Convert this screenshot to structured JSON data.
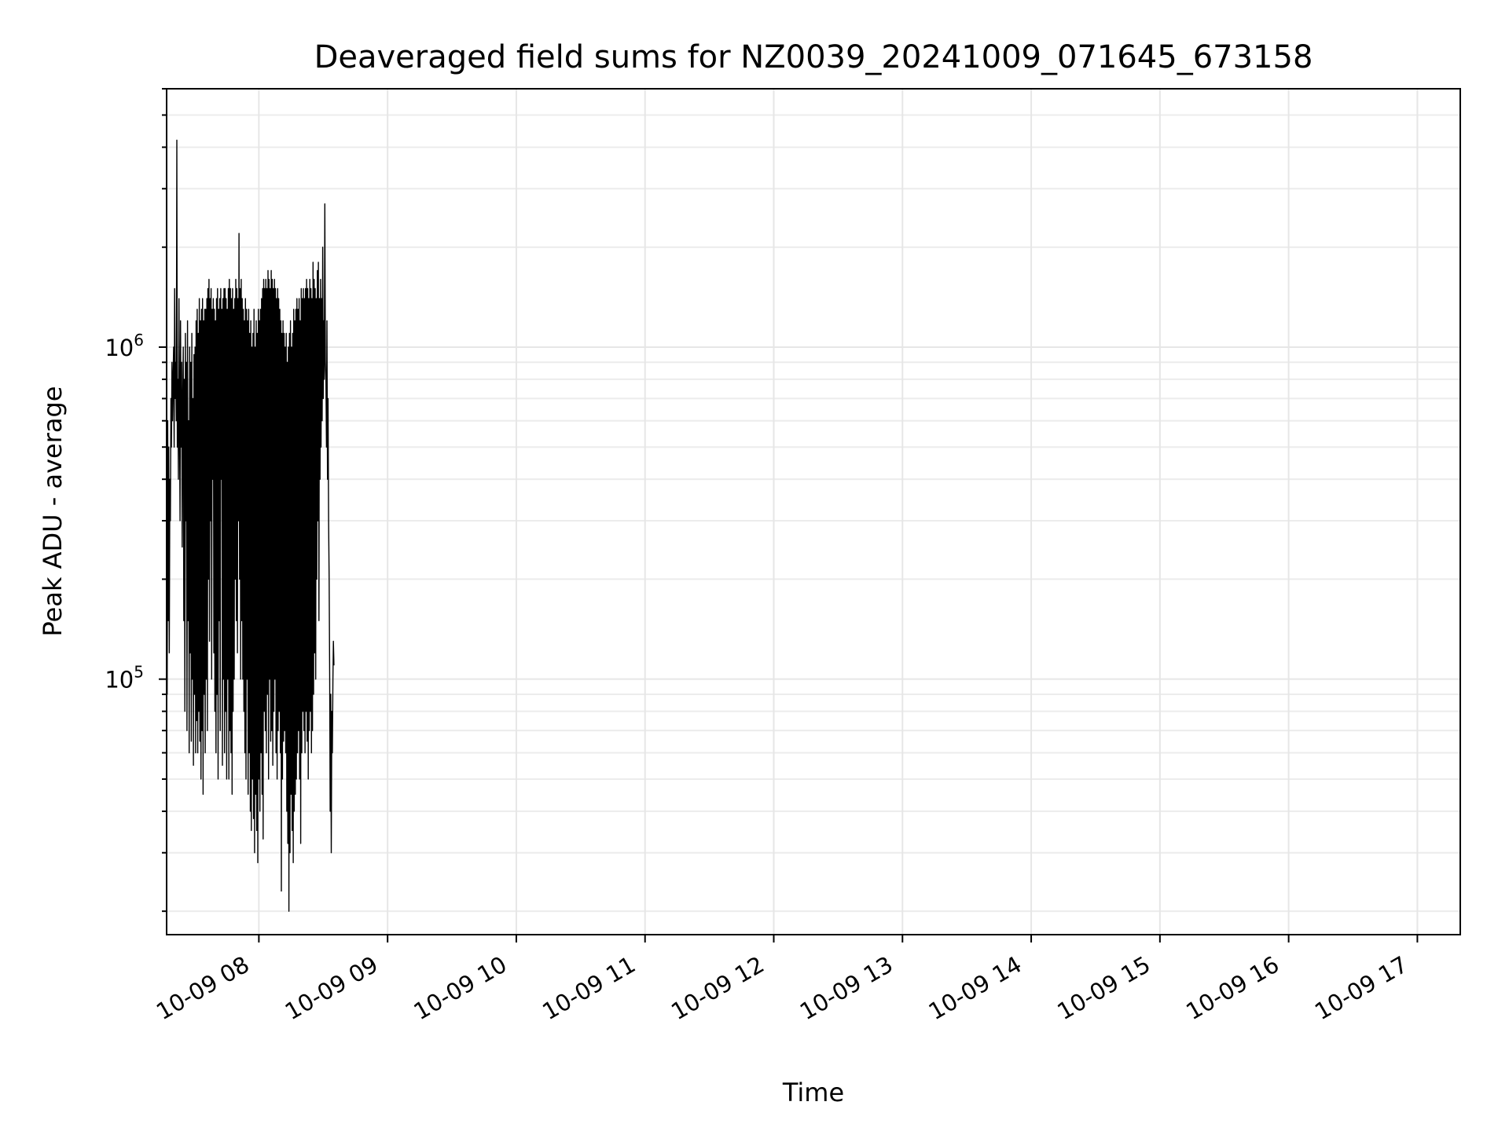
{
  "chart_data": {
    "type": "line",
    "title": "Deaveraged field sums for NZ0039_20241009_071645_673158",
    "xlabel": "Time",
    "ylabel": "Peak ADU - average",
    "x_ticks": [
      "10-09 08",
      "10-09 09",
      "10-09 10",
      "10-09 11",
      "10-09 12",
      "10-09 13",
      "10-09 14",
      "10-09 15",
      "10-09 16",
      "10-09 17"
    ],
    "xlim": [
      "2024-10-09 07:17",
      "2024-10-09 17:20"
    ],
    "y_scale": "log",
    "ylim": [
      17000,
      6000000
    ],
    "y_ticks": [
      {
        "value": 100000,
        "base": "10",
        "exp": "5"
      },
      {
        "value": 1000000,
        "base": "10",
        "exp": "6"
      }
    ],
    "grid": true,
    "line_color": "#000000",
    "series": [
      {
        "sampling": "one reading every 15 seconds starting 2024-10-09 07:17:00; each value is one reading, read off the plotted envelope",
        "values": [
          700000,
          90000,
          600000,
          150000,
          500000,
          120000,
          400000,
          300000,
          700000,
          500000,
          900000,
          600000,
          800000,
          1000000,
          500000,
          1500000,
          700000,
          900000,
          600000,
          4200000,
          500000,
          800000,
          400000,
          1400000,
          600000,
          300000,
          1200000,
          500000,
          900000,
          250000,
          700000,
          1000000,
          150000,
          800000,
          80000,
          1100000,
          300000,
          900000,
          70000,
          1200000,
          150000,
          600000,
          60000,
          1000000,
          120000,
          900000,
          65000,
          1100000,
          100000,
          700000,
          55000,
          950000,
          90000,
          1000000,
          60000,
          1200000,
          75000,
          1300000,
          60000,
          1100000,
          80000,
          1400000,
          65000,
          1200000,
          50000,
          1300000,
          70000,
          1400000,
          45000,
          1200000,
          90000,
          1300000,
          60000,
          1300000,
          100000,
          1400000,
          70000,
          1500000,
          200000,
          1600000,
          130000,
          1400000,
          300000,
          1500000,
          100000,
          1300000,
          400000,
          1400000,
          120000,
          1300000,
          80000,
          1200000,
          60000,
          1400000,
          90000,
          1500000,
          50000,
          1300000,
          150000,
          1400000,
          70000,
          1500000,
          400000,
          1300000,
          55000,
          1400000,
          100000,
          1500000,
          60000,
          1500000,
          80000,
          1400000,
          50000,
          1300000,
          100000,
          1500000,
          50000,
          1600000,
          70000,
          1500000,
          60000,
          1400000,
          45000,
          1500000,
          80000,
          1300000,
          100000,
          1400000,
          200000,
          1600000,
          150000,
          1500000,
          120000,
          1400000,
          300000,
          2200000,
          200000,
          1500000,
          100000,
          1600000,
          150000,
          1400000,
          100000,
          1300000,
          80000,
          1200000,
          60000,
          1400000,
          50000,
          1300000,
          100000,
          1200000,
          45000,
          1300000,
          60000,
          1100000,
          40000,
          1200000,
          35000,
          1000000,
          50000,
          1100000,
          38000,
          1300000,
          30000,
          1000000,
          45000,
          1200000,
          35000,
          1100000,
          28000,
          1300000,
          50000,
          1200000,
          40000,
          1300000,
          60000,
          1400000,
          45000,
          1500000,
          33000,
          1600000,
          80000,
          1500000,
          70000,
          1600000,
          60000,
          1500000,
          90000,
          1700000,
          50000,
          1600000,
          100000,
          1500000,
          65000,
          1700000,
          70000,
          1600000,
          55000,
          1500000,
          80000,
          1600000,
          100000,
          1500000,
          60000,
          1400000,
          50000,
          1500000,
          70000,
          1400000,
          80000,
          1300000,
          60000,
          1200000,
          23000,
          1100000,
          50000,
          1200000,
          65000,
          1100000,
          70000,
          1000000,
          60000,
          1100000,
          40000,
          900000,
          32000,
          1000000,
          20000,
          1100000,
          30000,
          1200000,
          45000,
          1000000,
          35000,
          1100000,
          28000,
          1300000,
          40000,
          1200000,
          45000,
          1300000,
          50000,
          1400000,
          60000,
          1300000,
          70000,
          1400000,
          50000,
          1200000,
          32000,
          1500000,
          60000,
          1400000,
          80000,
          1500000,
          70000,
          1400000,
          60000,
          1500000,
          80000,
          1600000,
          65000,
          1500000,
          50000,
          1400000,
          70000,
          1600000,
          80000,
          1500000,
          60000,
          1400000,
          70000,
          1800000,
          90000,
          1600000,
          120000,
          1500000,
          100000,
          1400000,
          200000,
          1700000,
          300000,
          1800000,
          150000,
          1400000,
          400000,
          1600000,
          500000,
          1400000,
          600000,
          2000000,
          700000,
          1200000,
          800000,
          2700000,
          900000,
          800000,
          500000,
          1200000,
          400000,
          700000,
          300000,
          200000,
          100000,
          40000,
          90000,
          30000,
          80000,
          60000,
          100000,
          130000,
          110000
        ]
      }
    ]
  }
}
